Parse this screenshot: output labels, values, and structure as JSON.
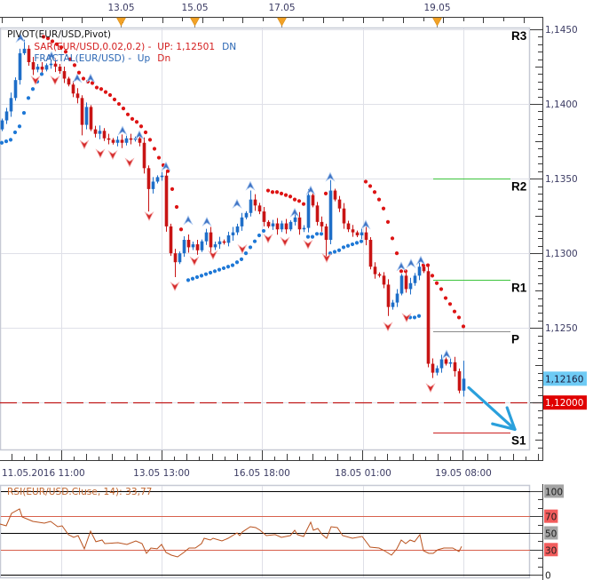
{
  "instrument": "EUR/USD",
  "legend": {
    "pivot": "PIVOT(EUR/USD,Pivot)",
    "sar": "SAR(EUR/USD,0.02,0.2) -  UP: 1,12501",
    "sar_dn": "DN",
    "fractal": "FRACTAL(EUR/USD) -  Up",
    "fractal_dn": "Dn"
  },
  "top_axis": {
    "markers": [
      {
        "label": "13.05",
        "bar": 26.8
      },
      {
        "label": "15.05",
        "bar": 43.4
      },
      {
        "label": "17.05",
        "bar": 63
      },
      {
        "label": "19.05",
        "bar": 98
      }
    ]
  },
  "time_axis": {
    "labels": [
      {
        "label": "11.05.2016 11:00",
        "bar": 13.4
      },
      {
        "label": "13.05 13:00",
        "bar": 36
      },
      {
        "label": "16.05 18:00",
        "bar": 58.6
      },
      {
        "label": "18.05 01:00",
        "bar": 81.4
      },
      {
        "label": "19.05 08:00",
        "bar": 104
      }
    ]
  },
  "price_axis": {
    "ticks": [
      {
        "label": "1,1450",
        "value": 1.145
      },
      {
        "label": "1,1400",
        "value": 1.14
      },
      {
        "label": "1,1350",
        "value": 1.135
      },
      {
        "label": "1,1300",
        "value": 1.13
      },
      {
        "label": "1,1250",
        "value": 1.125
      }
    ],
    "current": {
      "label": "1,12160",
      "value": 1.1216
    },
    "marked": {
      "label": "1,12000",
      "value": 1.12
    }
  },
  "pivots": [
    {
      "name": "R3",
      "value": null,
      "color": "#3cc43c"
    },
    {
      "name": "R2",
      "value": 1.135,
      "color": "#3cc43c"
    },
    {
      "name": "R1",
      "value": 1.1282,
      "color": "#3cc43c"
    },
    {
      "name": "P",
      "value": 1.1248,
      "color": "#8a8a8a"
    },
    {
      "name": "S1",
      "value": 1.118,
      "color": "#cc2222"
    }
  ],
  "pivot_line_bars": [
    97.2,
    114.6
  ],
  "rsi": {
    "title": "RSI(EUR/USD.Cluse, 14): 33,77",
    "levels": [
      {
        "label": "100",
        "value": 100,
        "line_color": "#000000",
        "bg": "#a4a4a4"
      },
      {
        "label": "70",
        "value": 70,
        "line_color": "#d8604c",
        "bg": "#f25c5c"
      },
      {
        "label": "50",
        "value": 50,
        "line_color": "#000000",
        "bg": "#a4a4a4"
      },
      {
        "label": "30",
        "value": 30,
        "line_color": "#d8604c",
        "bg": "#f25c5c"
      },
      {
        "label": "0",
        "value": 0,
        "line_color": "#000000",
        "bg": null
      }
    ]
  },
  "colors": {
    "up_candle": "#1e6ec8",
    "down_candle": "#c81414",
    "sar_up": "#1e78d6",
    "sar_down": "#dd1414",
    "fractal_up": "#3f74c4",
    "fractal_down": "#d42a2a",
    "rsi_line": "#b9521e",
    "arrow": "#2aa0dc",
    "current_price_bg": "#6ecbf5",
    "level_bg": "#e00000",
    "level_line": "#c01818",
    "orange_marker": "#f2a227",
    "grid": "#dfe0e8",
    "frame": "#c6c9d4"
  },
  "chart_data": [
    {
      "type": "candlestick",
      "title": "EUR/USD",
      "xlabel": "",
      "ylabel": "",
      "xlim": [
        -0.4,
        119
      ],
      "ylim": [
        1.11686,
        1.14512
      ],
      "first_open": 1.1383,
      "closes": [
        1.1389,
        1.1395,
        1.1404,
        1.1416,
        1.1434,
        1.1437,
        1.1428,
        1.1423,
        1.1425,
        1.1423,
        1.1426,
        1.1427,
        1.1425,
        1.1422,
        1.1417,
        1.1413,
        1.1407,
        1.1404,
        1.1386,
        1.1398,
        1.1383,
        1.138,
        1.1382,
        1.1377,
        1.1376,
        1.1374,
        1.1376,
        1.1374,
        1.1377,
        1.1376,
        1.1377,
        1.1374,
        1.1357,
        1.1343,
        1.1348,
        1.1351,
        1.1352,
        1.1318,
        1.13,
        1.1294,
        1.13,
        1.1309,
        1.1304,
        1.1306,
        1.1302,
        1.1308,
        1.1314,
        1.1304,
        1.1306,
        1.1308,
        1.1307,
        1.1312,
        1.1314,
        1.1318,
        1.1324,
        1.1327,
        1.1336,
        1.1332,
        1.1328,
        1.1321,
        1.1318,
        1.132,
        1.1316,
        1.132,
        1.1316,
        1.1321,
        1.1324,
        1.1316,
        1.1317,
        1.1339,
        1.1332,
        1.1321,
        1.1318,
        1.1309,
        1.1342,
        1.1336,
        1.133,
        1.132,
        1.1316,
        1.1314,
        1.1312,
        1.1314,
        1.1309,
        1.1291,
        1.1286,
        1.1285,
        1.1279,
        1.1264,
        1.1267,
        1.1273,
        1.1285,
        1.1276,
        1.128,
        1.1285,
        1.1291,
        1.1288,
        1.1226,
        1.122,
        1.1223,
        1.1229,
        1.1226,
        1.1227,
        1.1221,
        1.1208,
        1.1216
      ],
      "spikes": {
        "5": {
          "h": 1.1443
        },
        "18": {
          "l": 1.1379
        },
        "33": {
          "l": 1.1328
        },
        "39": {
          "l": 1.1284
        },
        "56": {
          "h": 1.1342
        },
        "69": {
          "h": 1.1343
        },
        "73": {
          "l": 1.1297
        },
        "74": {
          "h": 1.1349
        },
        "87": {
          "l": 1.1258
        },
        "94": {
          "h": 1.1294
        },
        "96": {
          "h": 1.1293
        },
        "104": {
          "h": 1.1228,
          "l": 1.1204
        }
      },
      "gridlines": {
        "x_bars": [
          13.4,
          36,
          58.6,
          81.4,
          104
        ],
        "y_prices": [
          1.145,
          1.14,
          1.135,
          1.13,
          1.125,
          1.12
        ]
      },
      "sar": [
        {
          "trend": "up",
          "start": 0,
          "values": [
            1.1374,
            1.1375,
            1.1376,
            1.1381,
            1.1385,
            1.1394,
            1.1404,
            1.141,
            1.1415,
            1.142
          ]
        },
        {
          "trend": "down",
          "start": 9.4,
          "values": [
            1.1445,
            1.1444,
            1.1442,
            1.144,
            1.1438,
            1.1435,
            1.143,
            1.1426,
            1.1421,
            1.1417,
            1.1415,
            1.1414,
            1.1411,
            1.141,
            1.1408,
            1.1406,
            1.1403,
            1.14,
            1.1397,
            1.1393,
            1.139,
            1.1388,
            1.1385,
            1.1381,
            1.1376,
            1.137,
            1.1364,
            1.1359,
            1.1355,
            1.1343,
            1.1331,
            1.1316
          ]
        },
        {
          "trend": "up",
          "start": 42,
          "values": [
            1.1282,
            1.1283,
            1.1284,
            1.1285,
            1.1286,
            1.1287,
            1.1288,
            1.1289,
            1.129,
            1.1291,
            1.1292,
            1.1294,
            1.1296,
            1.13,
            1.1304,
            1.1308,
            1.1312,
            1.1315
          ]
        },
        {
          "trend": "down",
          "start": 60,
          "values": [
            1.1342,
            1.1341,
            1.1341,
            1.134,
            1.1339,
            1.1338,
            1.1336,
            1.1335,
            1.1333
          ]
        },
        {
          "trend": "up",
          "start": 69,
          "values": [
            1.1311,
            1.1311,
            1.1313,
            1.1313
          ]
        },
        {
          "trend": "down",
          "start": 73,
          "values": [
            1.134
          ]
        },
        {
          "trend": "up",
          "start": 74,
          "values": [
            1.13,
            1.1301,
            1.1302,
            1.1304,
            1.1305,
            1.1306,
            1.1307,
            1.1308
          ]
        },
        {
          "trend": "down",
          "start": 82,
          "values": [
            1.1348,
            1.1345,
            1.1341,
            1.1336,
            1.133,
            1.1321,
            1.131,
            1.13,
            1.1288,
            1.1288
          ]
        },
        {
          "trend": "up",
          "start": 92,
          "values": [
            1.1257,
            1.1257,
            1.1258
          ]
        },
        {
          "trend": "down",
          "start": 95,
          "values": [
            1.1292,
            1.1292,
            1.1285,
            1.128,
            1.1276,
            1.127,
            1.1266,
            1.1261,
            1.1257,
            1.1251
          ]
        }
      ],
      "fractals": {
        "up": [
          [
            4.2,
            1.1444
          ],
          [
            11.2,
            1.1432
          ],
          [
            17,
            1.1417
          ],
          [
            20,
            1.1417
          ],
          [
            27.2,
            1.1382
          ],
          [
            31,
            1.1379
          ],
          [
            37,
            1.1358
          ],
          [
            42,
            1.1322
          ],
          [
            46.2,
            1.1321
          ],
          [
            53,
            1.1333
          ],
          [
            56,
            1.1345
          ],
          [
            66,
            1.1327
          ],
          [
            69.6,
            1.1342
          ],
          [
            74,
            1.1351
          ],
          [
            82,
            1.1319
          ],
          [
            90,
            1.1291
          ],
          [
            92.2,
            1.1293
          ],
          [
            94.4,
            1.1295
          ],
          [
            100.2,
            1.1232
          ]
        ],
        "down": [
          [
            7.6,
            1.1416
          ],
          [
            12,
            1.1416
          ],
          [
            18.6,
            1.1373
          ],
          [
            22.2,
            1.1367
          ],
          [
            25,
            1.1366
          ],
          [
            28.8,
            1.1361
          ],
          [
            33.2,
            1.1325
          ],
          [
            39,
            1.1278
          ],
          [
            43.4,
            1.1295
          ],
          [
            47.6,
            1.1299
          ],
          [
            54.2,
            1.1303
          ],
          [
            60,
            1.131
          ],
          [
            63.8,
            1.1308
          ],
          [
            69,
            1.1306
          ],
          [
            73.2,
            1.1297
          ],
          [
            87,
            1.1251
          ],
          [
            91.2,
            1.1257
          ],
          [
            96.6,
            1.121
          ]
        ]
      },
      "annotation_arrow": {
        "from": [
          105.2,
          1.121
        ],
        "to": [
          115.6,
          1.1182
        ]
      }
    },
    {
      "type": "line",
      "title": "RSI(EUR/USD.Cluse, 14): 33,77",
      "ylim": [
        -3.2,
        107.4
      ],
      "levels": [
        100,
        70,
        50,
        30,
        0
      ],
      "points": [
        [
          -0.4,
          60.6
        ],
        [
          1,
          58.5
        ],
        [
          2.2,
          73.4
        ],
        [
          4,
          78.7
        ],
        [
          4.6,
          69.1
        ],
        [
          7,
          63.8
        ],
        [
          9.6,
          61.7
        ],
        [
          11,
          63.8
        ],
        [
          12.6,
          57.4
        ],
        [
          13.6,
          58.5
        ],
        [
          15,
          47.9
        ],
        [
          16.2,
          44.7
        ],
        [
          17.2,
          46.8
        ],
        [
          18.6,
          30.9
        ],
        [
          20,
          52.1
        ],
        [
          21.2,
          39.4
        ],
        [
          22.6,
          41.5
        ],
        [
          23.2,
          37.2
        ],
        [
          26.2,
          38.3
        ],
        [
          28.2,
          36.2
        ],
        [
          30.2,
          40.4
        ],
        [
          31.6,
          37.2
        ],
        [
          32.6,
          25.5
        ],
        [
          33.6,
          31.9
        ],
        [
          35,
          30.9
        ],
        [
          36,
          36.2
        ],
        [
          37,
          26.6
        ],
        [
          38.2,
          23.4
        ],
        [
          39.6,
          21.3
        ],
        [
          41,
          26.6
        ],
        [
          42.2,
          31.9
        ],
        [
          43.6,
          31.9
        ],
        [
          45,
          37.2
        ],
        [
          45.6,
          43.6
        ],
        [
          47,
          41.5
        ],
        [
          47.6,
          43.6
        ],
        [
          49.6,
          40.4
        ],
        [
          51,
          43.6
        ],
        [
          53,
          50.0
        ],
        [
          53.6,
          46.8
        ],
        [
          54.2,
          51.1
        ],
        [
          56,
          57.4
        ],
        [
          57.2,
          56.4
        ],
        [
          58.2,
          53.2
        ],
        [
          59.6,
          46.8
        ],
        [
          61.6,
          47.9
        ],
        [
          63,
          44.7
        ],
        [
          65,
          46.8
        ],
        [
          66,
          53.2
        ],
        [
          66.6,
          47.9
        ],
        [
          68,
          45.7
        ],
        [
          69.6,
          62.8
        ],
        [
          70.2,
          53.2
        ],
        [
          71.2,
          55.3
        ],
        [
          72.2,
          47.9
        ],
        [
          73.2,
          43.6
        ],
        [
          74.2,
          57.4
        ],
        [
          75.6,
          56.4
        ],
        [
          76.8,
          46.8
        ],
        [
          79,
          43.6
        ],
        [
          81.2,
          45.7
        ],
        [
          83,
          33.0
        ],
        [
          85,
          31.9
        ],
        [
          86.2,
          28.7
        ],
        [
          87.8,
          23.4
        ],
        [
          89,
          30.9
        ],
        [
          90,
          41.5
        ],
        [
          91,
          37.2
        ],
        [
          92,
          41.5
        ],
        [
          93,
          39.4
        ],
        [
          94.2,
          47.9
        ],
        [
          95,
          28.7
        ],
        [
          96.2,
          25.5
        ],
        [
          97.2,
          25.5
        ],
        [
          98.2,
          29.8
        ],
        [
          99.6,
          31.9
        ],
        [
          101.6,
          31.9
        ],
        [
          103,
          27.7
        ],
        [
          103.6,
          33.77
        ]
      ]
    }
  ]
}
